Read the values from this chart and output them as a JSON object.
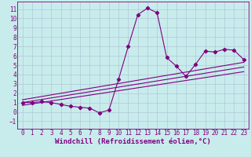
{
  "xlabel": "Windchill (Refroidissement éolien,°C)",
  "background_color": "#c8ecec",
  "line_color": "#800080",
  "grid_color": "#b0c8d8",
  "xlim": [
    -0.5,
    23.5
  ],
  "ylim": [
    -1.8,
    11.8
  ],
  "xticks": [
    0,
    1,
    2,
    3,
    4,
    5,
    6,
    7,
    8,
    9,
    10,
    11,
    12,
    13,
    14,
    15,
    16,
    17,
    18,
    19,
    20,
    21,
    22,
    23
  ],
  "yticks": [
    -1,
    0,
    1,
    2,
    3,
    4,
    5,
    6,
    7,
    8,
    9,
    10,
    11
  ],
  "curve1_x": [
    0,
    1,
    2,
    3,
    4,
    5,
    6,
    7,
    8,
    9,
    10,
    11,
    12,
    13,
    14,
    15,
    16,
    17,
    18,
    19,
    20,
    21,
    22,
    23
  ],
  "curve1_y": [
    1.0,
    1.0,
    1.1,
    1.0,
    0.8,
    0.6,
    0.5,
    0.4,
    -0.1,
    0.2,
    3.5,
    7.0,
    10.4,
    11.1,
    10.6,
    5.8,
    4.9,
    3.8,
    5.1,
    6.5,
    6.4,
    6.7,
    6.6,
    5.6
  ],
  "line1_x": [
    0,
    23
  ],
  "line1_y": [
    1.0,
    4.8
  ],
  "line2_x": [
    0,
    23
  ],
  "line2_y": [
    1.3,
    5.3
  ],
  "line3_x": [
    0,
    23
  ],
  "line3_y": [
    0.7,
    4.3
  ],
  "tick_fontsize": 5.5,
  "xlabel_fontsize": 6.5
}
